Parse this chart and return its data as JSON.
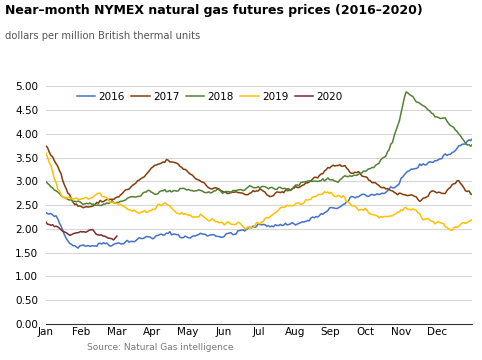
{
  "title": "Near–month NYMEX natural gas futures prices (2016–2020)",
  "subtitle": "dollars per million British thermal units",
  "source": "Source: Natural Gas intelligence",
  "colors": {
    "2016": "#4472C4",
    "2017": "#843C0C",
    "2018": "#538135",
    "2019": "#FFC000",
    "2020": "#7B2C2C"
  },
  "ylim": [
    0.0,
    5.0
  ],
  "yticks": [
    0.0,
    0.5,
    1.0,
    1.5,
    2.0,
    2.5,
    3.0,
    3.5,
    4.0,
    4.5,
    5.0
  ],
  "months": [
    "Jan",
    "Feb",
    "Mar",
    "Apr",
    "May",
    "Jun",
    "Jul",
    "Aug",
    "Sep",
    "Oct",
    "Nov",
    "Dec"
  ],
  "kp_2016": [
    2.35,
    2.2,
    1.72,
    1.68,
    1.75,
    1.8,
    1.85,
    1.9,
    2.0,
    2.05,
    2.08,
    2.12,
    2.1,
    2.08,
    2.05,
    2.1,
    2.12,
    2.15,
    2.18,
    2.22,
    2.25,
    2.28,
    2.32,
    2.35,
    2.38,
    2.42,
    2.48,
    2.55,
    2.6,
    2.68,
    2.75,
    2.8,
    2.85,
    2.9,
    3.0,
    3.1,
    3.2,
    3.3,
    3.4,
    3.5,
    3.6,
    3.8,
    3.9
  ],
  "kp_2017": [
    3.75,
    3.5,
    3.2,
    2.9,
    2.65,
    2.58,
    2.6,
    2.65,
    2.7,
    2.75,
    2.8,
    2.9,
    3.0,
    3.1,
    3.2,
    3.3,
    3.35,
    3.4,
    3.3,
    3.2,
    3.1,
    3.0,
    2.95,
    2.9,
    2.85,
    2.8,
    2.78,
    2.75,
    2.72,
    2.7,
    2.68,
    2.65,
    2.68,
    2.72,
    2.75,
    2.8,
    2.9,
    3.0,
    3.1,
    3.2,
    3.15,
    3.1,
    3.05,
    3.0,
    2.95,
    2.9,
    2.85,
    2.8,
    2.78,
    2.75,
    2.72,
    2.7,
    2.68,
    2.72,
    2.75,
    2.8,
    2.9,
    3.0,
    2.85,
    2.72
  ],
  "kp_2018": [
    3.0,
    2.9,
    2.8,
    2.7,
    2.65,
    2.65,
    2.68,
    2.7,
    2.72,
    2.75,
    2.78,
    2.8,
    2.85,
    2.88,
    2.9,
    2.92,
    2.95,
    2.98,
    3.0,
    3.0,
    2.98,
    2.96,
    2.94,
    2.92,
    2.9,
    2.88,
    2.86,
    2.84,
    2.82,
    2.8,
    2.78,
    2.76,
    2.75,
    2.76,
    2.78,
    2.8,
    2.82,
    2.85,
    2.88,
    2.9,
    2.92,
    2.95,
    2.98,
    3.0,
    3.02,
    3.05,
    3.08,
    3.1,
    3.15,
    3.2,
    3.3,
    3.5,
    3.8,
    4.2,
    4.8,
    4.7,
    4.6,
    4.5,
    4.4,
    4.3,
    4.2,
    4.1,
    3.95,
    3.85,
    3.78
  ],
  "kp_2019": [
    3.6,
    3.3,
    2.8,
    2.6,
    2.55,
    2.5,
    2.58,
    2.6,
    2.62,
    2.65,
    2.6,
    2.55,
    2.5,
    2.45,
    2.42,
    2.4,
    2.38,
    2.4,
    2.42,
    2.45,
    2.42,
    2.4,
    2.38,
    2.35,
    2.32,
    2.3,
    2.28,
    2.25,
    2.22,
    2.2,
    2.18,
    2.15,
    2.12,
    2.1,
    2.08,
    2.1,
    2.12,
    2.15,
    2.18,
    2.2,
    2.22,
    2.25,
    2.28,
    2.3,
    2.32,
    2.35,
    2.4,
    2.45,
    2.42,
    2.38,
    2.35,
    2.3,
    2.25,
    2.22,
    2.2,
    2.18,
    2.15,
    2.12,
    2.1,
    2.15,
    2.18,
    2.2,
    2.22,
    2.2,
    2.18,
    2.15,
    2.12,
    2.1,
    2.12,
    2.15,
    2.18,
    2.2
  ],
  "kp_2020": [
    2.15,
    2.1,
    2.08,
    2.05,
    2.02,
    2.0,
    1.98,
    1.95,
    1.93,
    1.9,
    1.88,
    1.86,
    1.85,
    1.87,
    1.88,
    1.9,
    1.92,
    1.95,
    1.97,
    2.0,
    1.98,
    1.95,
    1.93,
    1.9,
    1.88,
    1.86,
    1.84,
    1.82,
    1.8,
    1.82,
    1.85
  ],
  "n_full": 252,
  "n_2020": 42
}
